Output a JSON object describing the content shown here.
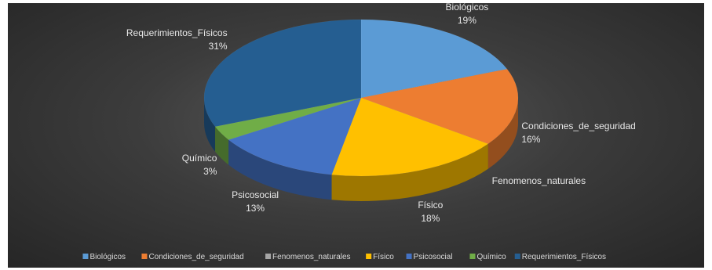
{
  "chart_data": {
    "type": "pie",
    "style": "3d-pie",
    "categories": [
      "Biológicos",
      "Condiciones_de_seguridad",
      "Fenomenos_naturales",
      "Físico",
      "Psicosocial",
      "Químico",
      "Requerimientos_Físicos"
    ],
    "values": [
      19,
      16,
      0,
      18,
      13,
      3,
      31
    ],
    "percent_labels": [
      "19%",
      "16%",
      "",
      "18%",
      "13%",
      "3%",
      "31%"
    ],
    "colors": [
      "#5b9bd5",
      "#ed7d31",
      "#a5a5a5",
      "#ffc000",
      "#4472c4",
      "#70ad47",
      "#255e91"
    ],
    "legend_position": "bottom"
  }
}
